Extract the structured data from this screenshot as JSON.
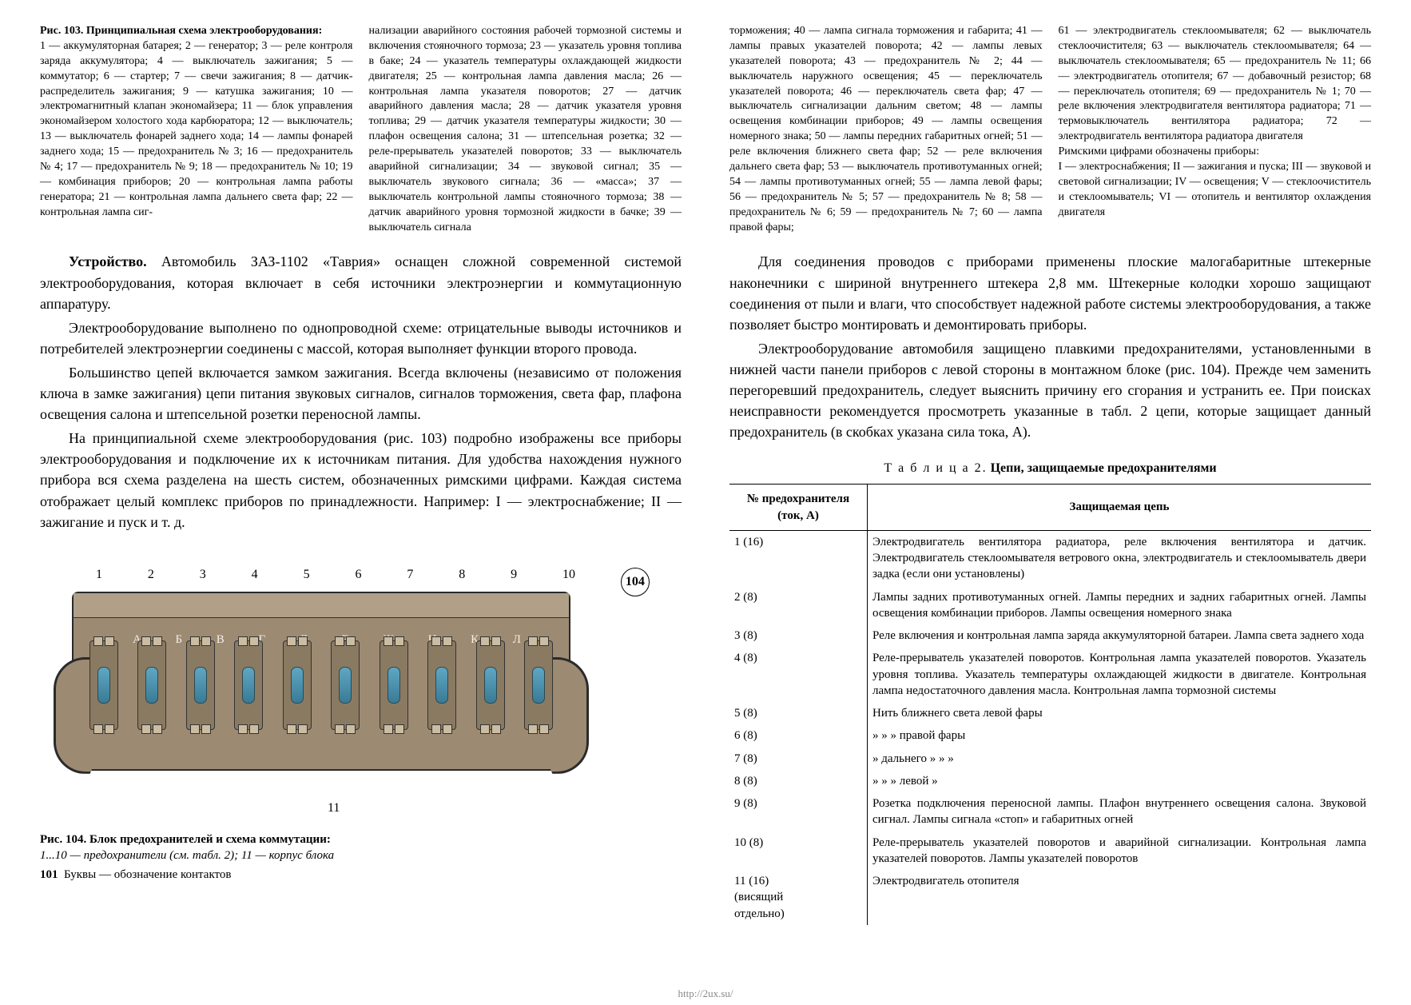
{
  "fig103": {
    "title": "Рис. 103. Принципиальная схема электрооборудования:",
    "col1": "1 — аккумуляторная батарея; 2 — генератор; 3 — реле контроля заряда аккумулятора; 4 — выключатель зажигания; 5 — коммутатор; 6 — стартер; 7 — свечи зажигания; 8 — датчик-распределитель зажигания; 9 — катушка зажигания; 10 — электромагнитный клапан экономайзера; 11 — блок управления экономайзером холостого хода карбюратора; 12 — выключатель; 13 — выключатель фонарей заднего хода; 14 — лампы фонарей заднего хода; 15 — предохранитель № 3; 16 — предохранитель № 4; 17 — предохранитель № 9; 18 — предохранитель № 10; 19 — комбинация приборов; 20 — контрольная лампа работы генератора; 21 — контрольная лампа дальнего света фар; 22 — контрольная лампа сиг-",
    "col2": "нализации аварийного состояния рабочей тормозной системы и включения стояночного тормоза; 23 — указатель уровня топлива в баке; 24 — указатель температуры охлаждающей жидкости двигателя; 25 — контрольная лампа давления масла; 26 — контрольная лампа указателя поворотов; 27 — датчик аварийного давления масла; 28 — датчик указателя уровня топлива; 29 — датчик указателя температуры жидкости; 30 — плафон освещения салона; 31 — штепсельная розетка; 32 — реле-прерыватель указателей поворотов; 33 — выключатель аварийной сигнализации; 34 — звуковой сигнал; 35 — выключатель звукового сигнала; 36 — «масса»; 37 — выключатель контрольной лампы стояночного тормоза; 38 — датчик аварийного уровня тормозной жидкости в бачке; 39 — выключатель сигнала",
    "col3": "торможения; 40 — лампа сигнала торможения и габарита; 41 — лампы правых указателей поворота; 42 — лампы левых указателей поворота; 43 — предохранитель № 2; 44 — выключатель наружного освещения; 45 — переключатель указателей поворота; 46 — переключатель света фар; 47 — выключатель сигнализации дальним светом; 48 — лампы освещения комбинации приборов; 49 — лампы освещения номерного знака; 50 — лампы передних габаритных огней; 51 — реле включения ближнего света фар; 52 — реле включения дальнего света фар; 53 — выключатель противотуманных огней; 54 — лампы противотуманных огней; 55 — лампа левой фары; 56 — предохранитель № 5; 57 — предохранитель № 8; 58 — предохранитель № 6; 59 — предохранитель № 7; 60 — лампа правой фары;",
    "col4": "61 — электродвигатель стеклоомывателя; 62 — выключатель стеклоочистителя; 63 — выключатель стеклоомывателя; 64 — выключатель стеклоомывателя; 65 — предохранитель № 11; 66 — электродвигатель отопителя; 67 — добавочный резистор; 68 — переключатель отопителя; 69 — предохранитель № 1; 70 — реле включения электродвигателя вентилятора радиатора; 71 — термовыключатель вентилятора радиатора; 72 — электродвигатель вентилятора радиатора двигателя\nРимскими цифрами обозначены приборы:\nI — электроснабжения; II — зажигания и пуска; III — звуковой и световой сигнализации; IV — освещения; V — стеклоочиститель и стеклоомыватель; VI — отопитель и вентилятор охлаждения двигателя"
  },
  "left_body": {
    "p1_lead": "Устройство.",
    "p1": " Автомобиль ЗАЗ-1102 «Таврия» оснащен сложной современной системой электрооборудования, которая включает в себя источники электроэнергии и коммутационную аппаратуру.",
    "p2": "Электрооборудование выполнено по однопроводной схеме: отрицательные выводы источников и потребителей электроэнергии соединены с массой, которая выполняет функции второго провода.",
    "p3": "Большинство цепей включается замком зажигания. Всегда включены (независимо от положения ключа в замке зажигания) цепи питания звуковых сигналов, сигналов торможения, света фар, плафона освещения салона и штепсельной розетки переносной лампы.",
    "p4": "На принципиальной схеме электрооборудования (рис. 103) подробно изображены все приборы электрооборудования и подключение их к источникам питания. Для удобства нахождения нужного прибора вся схема разделена на шесть систем, обозначенных римскими цифрами. Каждая система отображает целый комплекс приборов по принадлежности. Например: I — электроснабжение; II — зажигание и пуск и т. д."
  },
  "right_body": {
    "p1": "Для соединения проводов с приборами применены плоские малогабаритные штекерные наконечники с шириной внутреннего штекера 2,8 мм. Штекерные колодки хорошо защищают соединения от пыли и влаги, что способствует надежной работе системы электрооборудования, а также позволяет быстро монтировать и демонтировать приборы.",
    "p2": "Электрооборудование автомобиля защищено плавкими предохранителями, установленными в нижней части панели приборов с левой стороны в монтажном блоке (рис. 104). Прежде чем заменить перегоревший предохранитель, следует выяснить причину его сгорания и устранить ее. При поисках неисправности рекомендуется просмотреть указанные в табл. 2 цепи, которые защищает данный предохранитель (в скобках указана сила тока, А)."
  },
  "diagram104": {
    "top_numbers": [
      "1",
      "2",
      "3",
      "4",
      "5",
      "6",
      "7",
      "8",
      "9",
      "10",
      "104"
    ],
    "letters": [
      "А",
      "Б",
      "В",
      "Г",
      "Д",
      "Е",
      "Ж",
      "И",
      "К",
      "Л"
    ],
    "label11": "11"
  },
  "fig104": {
    "title": "Рис. 104. Блок предохранителей и схема коммутации:",
    "line1": "1...10 — предохранители (см. табл. 2); 11 — корпус блока",
    "line2": "Буквы — обозначение контактов",
    "pagenum": "101"
  },
  "table2": {
    "title_prefix": "Т а б л и ц а  2.",
    "title_rest": "  Цепи, защищаемые предохранителями",
    "head_left": "№ предохранителя\n(ток, А)",
    "head_right": "Защищаемая цепь",
    "rows": [
      {
        "n": "1  (16)",
        "d": "Электродвигатель вентилятора радиатора, реле включения вентилятора и датчик. Электродвигатель стеклоомывателя ветрового окна, электродвигатель и стеклоомыватель двери задка (если они установлены)"
      },
      {
        "n": "2  (8)",
        "d": "Лампы задних противотуманных огней. Лампы передних и задних габаритных огней. Лампы освещения комбинации приборов. Лампы освещения номерного знака"
      },
      {
        "n": "3  (8)",
        "d": "Реле включения и контрольная лампа заряда аккумуляторной батареи. Лампа света заднего хода"
      },
      {
        "n": "4  (8)",
        "d": "Реле-прерыватель указателей поворотов. Контрольная лампа указателей поворотов. Указатель уровня топлива. Указатель температуры охлаждающей жидкости в двигателе. Контрольная лампа недостаточного давления масла. Контрольная лампа тормозной системы"
      },
      {
        "n": "5  (8)",
        "d": "Нить ближнего света левой фары"
      },
      {
        "n": "6  (8)",
        "d": "    »            »           »     правой фары"
      },
      {
        "n": "7  (8)",
        "d": "    »     дальнего     »          »       »"
      },
      {
        "n": "8  (8)",
        "d": "    »            »           »     левой     »"
      },
      {
        "n": "9  (8)",
        "d": "Розетка подключения переносной лампы. Плафон внутреннего освещения салона. Звуковой сигнал. Лампы сигнала «стоп» и габаритных огней"
      },
      {
        "n": "10  (8)",
        "d": "Реле-прерыватель указателей поворотов и аварийной сигнализации. Контрольная лампа указателей поворотов. Лампы указателей поворотов"
      },
      {
        "n": "11  (16)\n(висящий\nотдельно)",
        "d": "Электродвигатель отопителя"
      }
    ]
  },
  "footer_url": "http://2ux.su/"
}
